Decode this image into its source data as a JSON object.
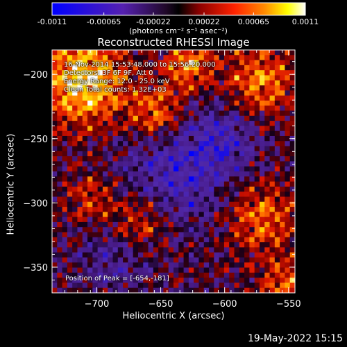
{
  "colorbar": {
    "ticks": [
      "-0.0011",
      "-0.00065",
      "-0.00022",
      "0.00022",
      "0.00065",
      "0.0011"
    ],
    "tick_values": [
      -0.0011,
      -0.00065,
      -0.00022,
      0.00022,
      0.00065,
      0.0011
    ],
    "range": [
      -0.0011,
      0.0011
    ],
    "units": "(photons cm⁻² s⁻¹ asec⁻²)"
  },
  "title": "Reconstructed RHESSI Image",
  "info_lines": [
    "16-Nov-2014 15:53:48.000 to 15:56:20.000",
    "Detectors: 3F 6F 9F, Att 0",
    "Energy Range: 12.0 - 25.0 keV",
    "Clean     Total counts: 1.32E+03"
  ],
  "peak_label": "Position of Peak = [-654,-181]",
  "footer_date": "19-May-2022 15:15",
  "chart_data": {
    "type": "heatmap",
    "title": "Reconstructed RHESSI Image",
    "xlabel": "Heliocentric X (arcsec)",
    "ylabel": "Heliocentric Y (arcsec)",
    "xlim": [
      -735,
      -545
    ],
    "ylim": [
      -370,
      -181
    ],
    "xticks": [
      -700,
      -650,
      -600,
      -550
    ],
    "yticks": [
      -350,
      -300,
      -250,
      -200
    ],
    "xtick_labels": [
      "−700",
      "−650",
      "−600",
      "−550"
    ],
    "ytick_labels": [
      "−350",
      "−300",
      "−250",
      "−200"
    ],
    "peak_position": [
      -654,
      -181
    ],
    "colormap": "blue-purple-red-yellow-white",
    "colormap_stops": [
      "#0000ff",
      "#4a1a9a",
      "#000000",
      "#cc0000",
      "#ff6600",
      "#ffff00",
      "#ffffff"
    ]
  }
}
